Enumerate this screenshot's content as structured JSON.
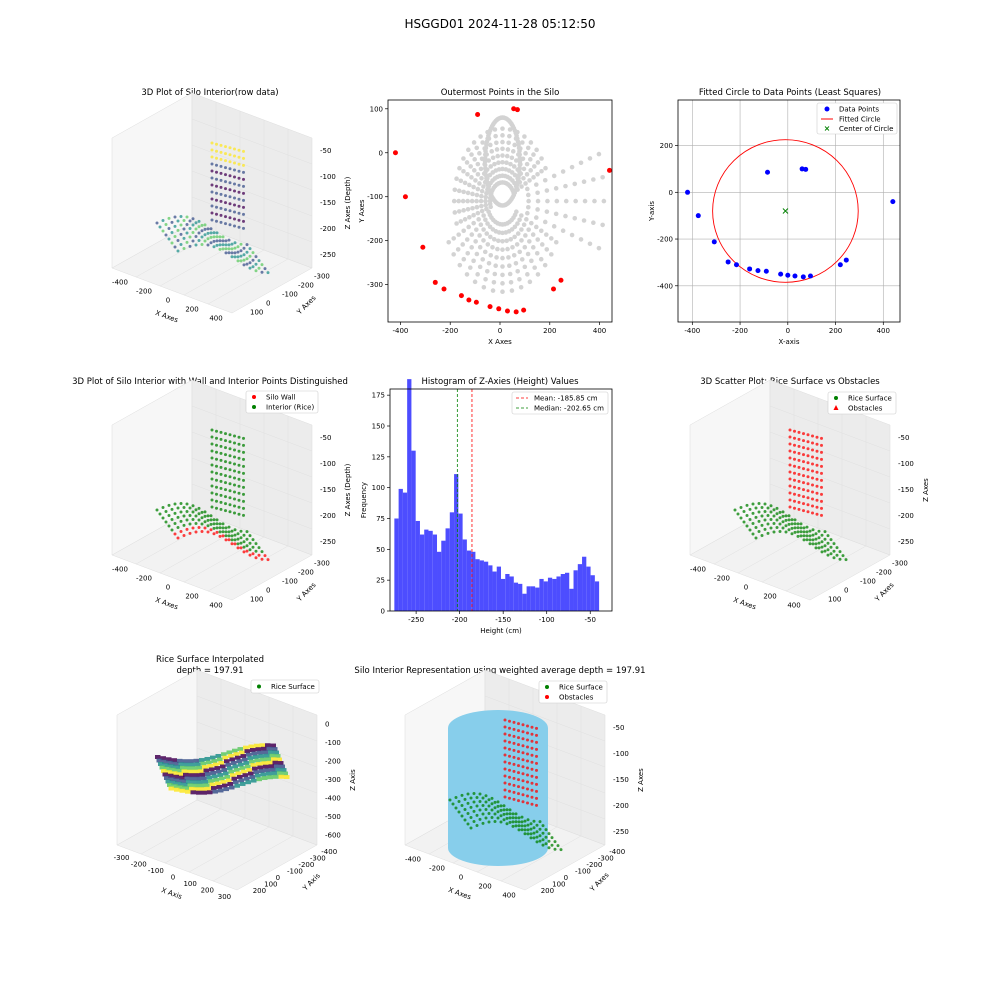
{
  "suptitle": "HSGGD01 2024-11-28 05:12:50",
  "colors": {
    "blue": "#0000ff",
    "red": "#ff0000",
    "green": "#008000",
    "light_grey": "#d3d3d3",
    "sky_blue": "#87ceeb",
    "hist_blue": "#4d4dff"
  },
  "panels": {
    "p1": {
      "title": "3D Plot of Silo Interior(row data)",
      "xlabel": "X Axes",
      "ylabel": "Y Axes",
      "zlabel": "Z Axes (Depth)",
      "xticks": [
        "-400",
        "-200",
        "0",
        "200",
        "400"
      ],
      "yticks": [
        "100",
        "0",
        "-100",
        "-200",
        "-300"
      ],
      "zticks": [
        "-50",
        "-100",
        "-150",
        "-200",
        "-250"
      ]
    },
    "p4": {
      "title": "3D Plot of Silo Interior with Wall and Interior Points Distinguished",
      "xlabel": "X Axes",
      "ylabel": "Y Axes",
      "zlabel": "Z Axes (Depth)",
      "xticks": [
        "-400",
        "-200",
        "0",
        "200",
        "400"
      ],
      "yticks": [
        "100",
        "0",
        "-100",
        "-200",
        "-300"
      ],
      "zticks": [
        "-50",
        "-100",
        "-150",
        "-200",
        "-250"
      ],
      "legend": [
        "Silo Wall",
        "Interior (Rice)"
      ]
    },
    "p6": {
      "title": "3D Scatter Plot: Rice Surface vs Obstacles",
      "xlabel": "X Axes",
      "ylabel": "Y Axes",
      "zlabel": "Z Axes",
      "xticks": [
        "-400",
        "-200",
        "0",
        "200",
        "400"
      ],
      "yticks": [
        "100",
        "0",
        "-100",
        "-200",
        "-300"
      ],
      "zticks": [
        "-50",
        "-100",
        "-150",
        "-200",
        "-250"
      ],
      "legend": [
        "Rice Surface",
        "Obstacles"
      ]
    },
    "p7": {
      "title_line1": "Rice Surface Interpolated",
      "title_line2": "depth = 197.91",
      "xlabel": "X Axis",
      "ylabel": "Y Axis",
      "zlabel": "Z Axis",
      "xticks": [
        "-300",
        "-200",
        "-100",
        "0",
        "100",
        "200",
        "300"
      ],
      "yticks": [
        "200",
        "100",
        "0",
        "-100",
        "-200",
        "-300",
        "-400"
      ],
      "zticks": [
        "0",
        "-100",
        "-200",
        "-300",
        "-400",
        "-500",
        "-600"
      ],
      "legend": [
        "Rice Surface"
      ]
    },
    "p8": {
      "title": "Silo Interior Representation using weighted average depth = 197.91",
      "xlabel": "X Axes",
      "ylabel": "Y Axes",
      "zlabel": "Z Axes",
      "xticks": [
        "-400",
        "-200",
        "0",
        "200",
        "400"
      ],
      "yticks": [
        "200",
        "100",
        "0",
        "-100",
        "-200",
        "-300",
        "-400"
      ],
      "zticks": [
        "-50",
        "-100",
        "-150",
        "-200",
        "-250"
      ],
      "legend": [
        "Rice Surface",
        "Obstacles"
      ]
    }
  },
  "chart_data": [
    {
      "id": "outermost",
      "type": "scatter",
      "title": "Outermost Points in the Silo",
      "xlabel": "X Axes",
      "ylabel": "Y Axes",
      "xlim": [
        -450,
        450
      ],
      "ylim": [
        -385,
        120
      ],
      "xticks": [
        -400,
        -200,
        0,
        200,
        400
      ],
      "yticks": [
        100,
        0,
        -100,
        -200,
        -300
      ],
      "series": [
        {
          "color": "#d3d3d3",
          "points": "many grey measurement points (radial rays)"
        },
        {
          "color": "#ff0000",
          "points": [
            [
              -420,
              0
            ],
            [
              -380,
              -100
            ],
            [
              -310,
              -215
            ],
            [
              -260,
              -295
            ],
            [
              -225,
              -310
            ],
            [
              -155,
              -325
            ],
            [
              -125,
              -335
            ],
            [
              -95,
              -340
            ],
            [
              -40,
              -350
            ],
            [
              -5,
              -355
            ],
            [
              30,
              -360
            ],
            [
              65,
              -362
            ],
            [
              95,
              -358
            ],
            [
              215,
              -310
            ],
            [
              245,
              -290
            ],
            [
              -90,
              87
            ],
            [
              55,
              100
            ],
            [
              70,
              98
            ],
            [
              440,
              -40
            ]
          ]
        }
      ]
    },
    {
      "id": "circle",
      "type": "scatter",
      "title": "Fitted Circle to Data Points (Least Squares)",
      "xlabel": "X-axis",
      "ylabel": "Y-axis",
      "xlim": [
        -460,
        470
      ],
      "ylim": [
        -555,
        395
      ],
      "xticks": [
        -400,
        -200,
        0,
        200,
        400
      ],
      "yticks": [
        200,
        0,
        -200,
        -400
      ],
      "grid": true,
      "legend": "top-right",
      "legend_entries": [
        "Data Points",
        "Fitted Circle",
        "Center of Circle"
      ],
      "data_points": [
        [
          -420,
          0
        ],
        [
          -375,
          -100
        ],
        [
          -308,
          -212
        ],
        [
          -250,
          -298
        ],
        [
          -215,
          -310
        ],
        [
          -160,
          -328
        ],
        [
          -125,
          -335
        ],
        [
          -90,
          -338
        ],
        [
          -30,
          -350
        ],
        [
          0,
          -355
        ],
        [
          30,
          -358
        ],
        [
          65,
          -362
        ],
        [
          95,
          -358
        ],
        [
          220,
          -310
        ],
        [
          245,
          -290
        ],
        [
          -85,
          86
        ],
        [
          60,
          100
        ],
        [
          75,
          98
        ],
        [
          440,
          -40
        ]
      ],
      "circle": {
        "cx": -10,
        "cy": -80,
        "r": 305
      },
      "center": [
        -10,
        -80
      ]
    },
    {
      "id": "histogram",
      "type": "bar",
      "title": "Histogram of Z-Axies (Height) Values",
      "xlabel": "Height (cm)",
      "ylabel": "Frequency",
      "xlim": [
        -280,
        -25
      ],
      "ylim": [
        0,
        180
      ],
      "xticks": [
        -250,
        -200,
        -150,
        -100,
        -50
      ],
      "yticks": [
        0,
        25,
        50,
        75,
        100,
        125,
        150,
        175
      ],
      "bin_start": -275,
      "bin_width": 4.9,
      "values": [
        75,
        99,
        96,
        188,
        130,
        73,
        62,
        66,
        65,
        62,
        48,
        57,
        67,
        80,
        111,
        79,
        58,
        49,
        48,
        42,
        41,
        40,
        37,
        32,
        36,
        26,
        30,
        28,
        23,
        22,
        14,
        20,
        20,
        19,
        26,
        24,
        27,
        26,
        28,
        30,
        31,
        18,
        33,
        38,
        44,
        36,
        29,
        24
      ],
      "mean_label": "Mean: -185.85 cm",
      "median_label": "Median: -202.65 cm",
      "mean": -185.85,
      "median": -202.65
    }
  ]
}
